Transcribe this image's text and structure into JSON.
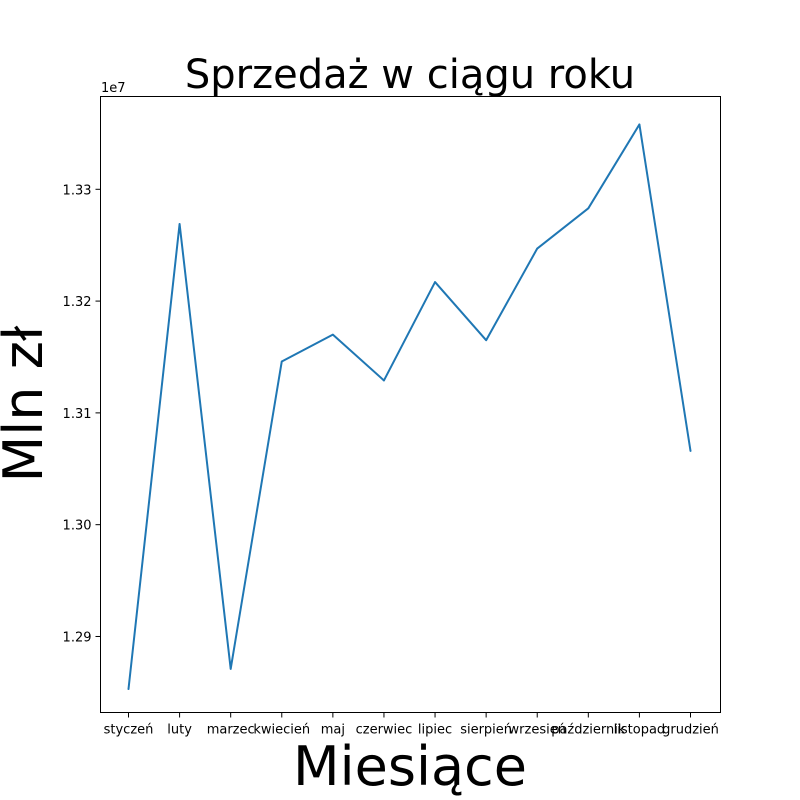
{
  "chart_data": {
    "type": "line",
    "title": "Sprzedaż w ciągu roku",
    "xlabel": "Miesiące",
    "ylabel": "Mln zł",
    "offset_label": "1e7",
    "categories": [
      "styczeń",
      "luty",
      "marzec",
      "kwiecień",
      "maj",
      "czerwiec",
      "lipiec",
      "sierpień",
      "wrzesień",
      "październik",
      "listopad",
      "grudzień"
    ],
    "series": [
      {
        "color": "#1f77b4",
        "values": [
          12853000,
          13269000,
          12871000,
          13146000,
          13170000,
          13129000,
          13217000,
          13165000,
          13247000,
          13283000,
          13358000,
          13066000
        ]
      }
    ],
    "yticks": [
      12900000,
      13000000,
      13100000,
      13200000,
      13300000
    ],
    "ytick_labels": [
      "1.29",
      "1.30",
      "1.31",
      "1.32",
      "1.33"
    ],
    "ylim": [
      12832000,
      13383000
    ],
    "grid": false
  }
}
